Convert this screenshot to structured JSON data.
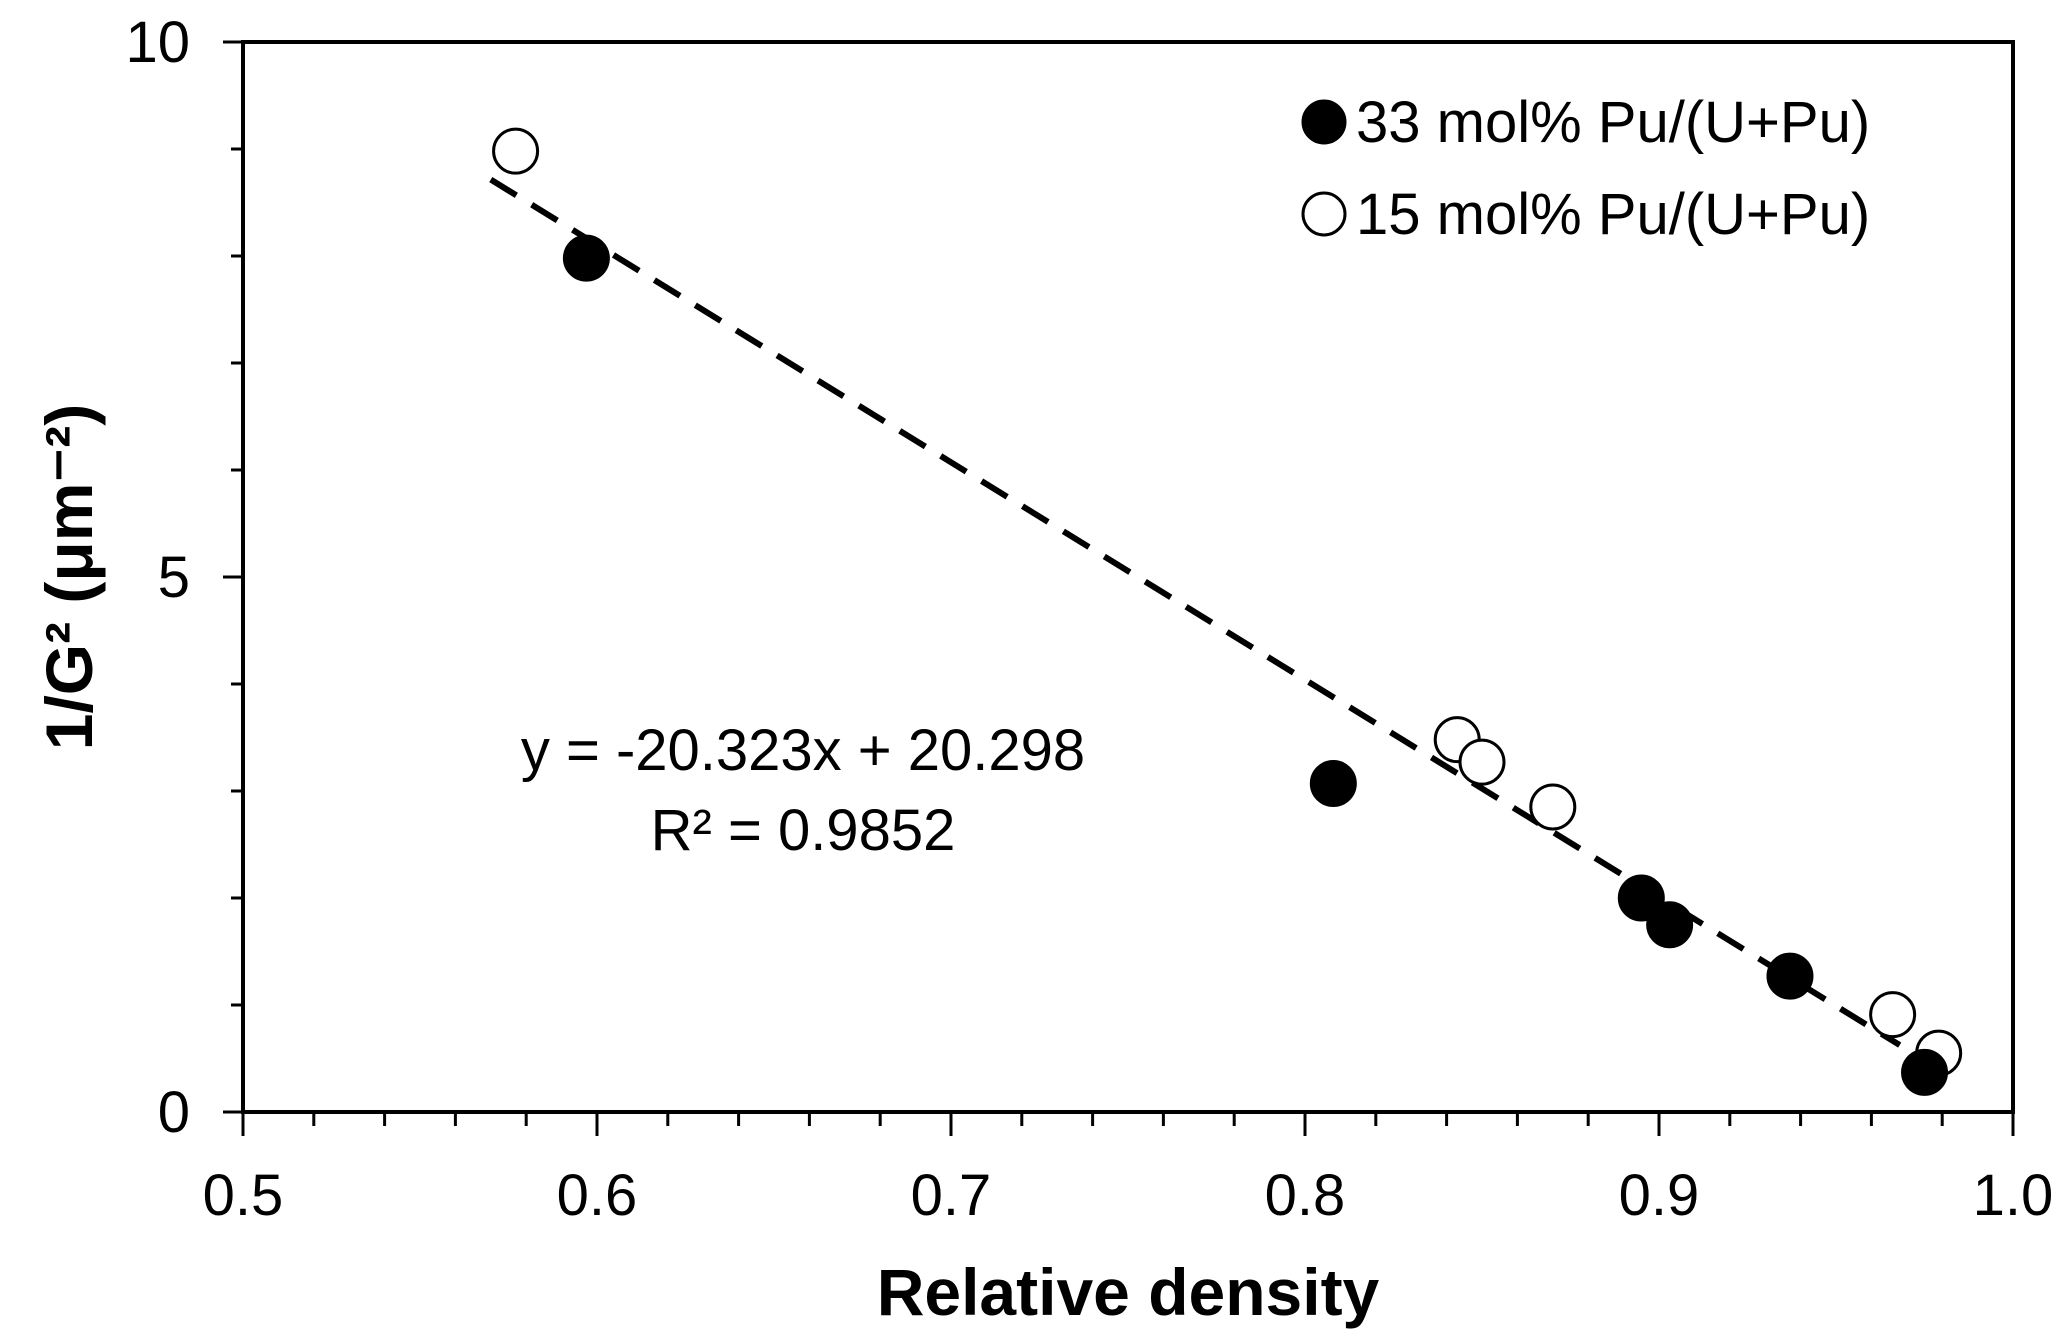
{
  "chart_data": {
    "type": "scatter",
    "xlabel": "Relative density",
    "ylabel": "1/G² (μm⁻²)",
    "xlim": [
      0.5,
      1.0
    ],
    "ylim": [
      0,
      10
    ],
    "xticks": [
      "0.5",
      "0.6",
      "0.7",
      "0.8",
      "0.9",
      "1.0"
    ],
    "yticks": [
      "0",
      "5",
      "10"
    ],
    "grid": false,
    "legend_position": "top-right",
    "series": [
      {
        "name": "33 mol% Pu/(U+Pu)",
        "marker": "filled-circle",
        "color": "#000000",
        "points": [
          {
            "x": 0.597,
            "y": 7.98
          },
          {
            "x": 0.808,
            "y": 3.07
          },
          {
            "x": 0.895,
            "y": 2.0
          },
          {
            "x": 0.903,
            "y": 1.75
          },
          {
            "x": 0.937,
            "y": 1.27
          },
          {
            "x": 0.975,
            "y": 0.37
          }
        ]
      },
      {
        "name": "15 mol% Pu/(U+Pu)",
        "marker": "open-circle",
        "color": "#000000",
        "points": [
          {
            "x": 0.577,
            "y": 8.98
          },
          {
            "x": 0.843,
            "y": 3.48
          },
          {
            "x": 0.85,
            "y": 3.27
          },
          {
            "x": 0.87,
            "y": 2.85
          },
          {
            "x": 0.966,
            "y": 0.91
          },
          {
            "x": 0.979,
            "y": 0.55
          }
        ]
      }
    ],
    "trendline": {
      "style": "dashed",
      "slope": -20.323,
      "intercept": 20.298,
      "x_range": [
        0.57,
        0.968
      ]
    },
    "annotations": {
      "equation": "y = -20.323x + 20.298",
      "r_squared": "R² = 0.9852"
    }
  }
}
